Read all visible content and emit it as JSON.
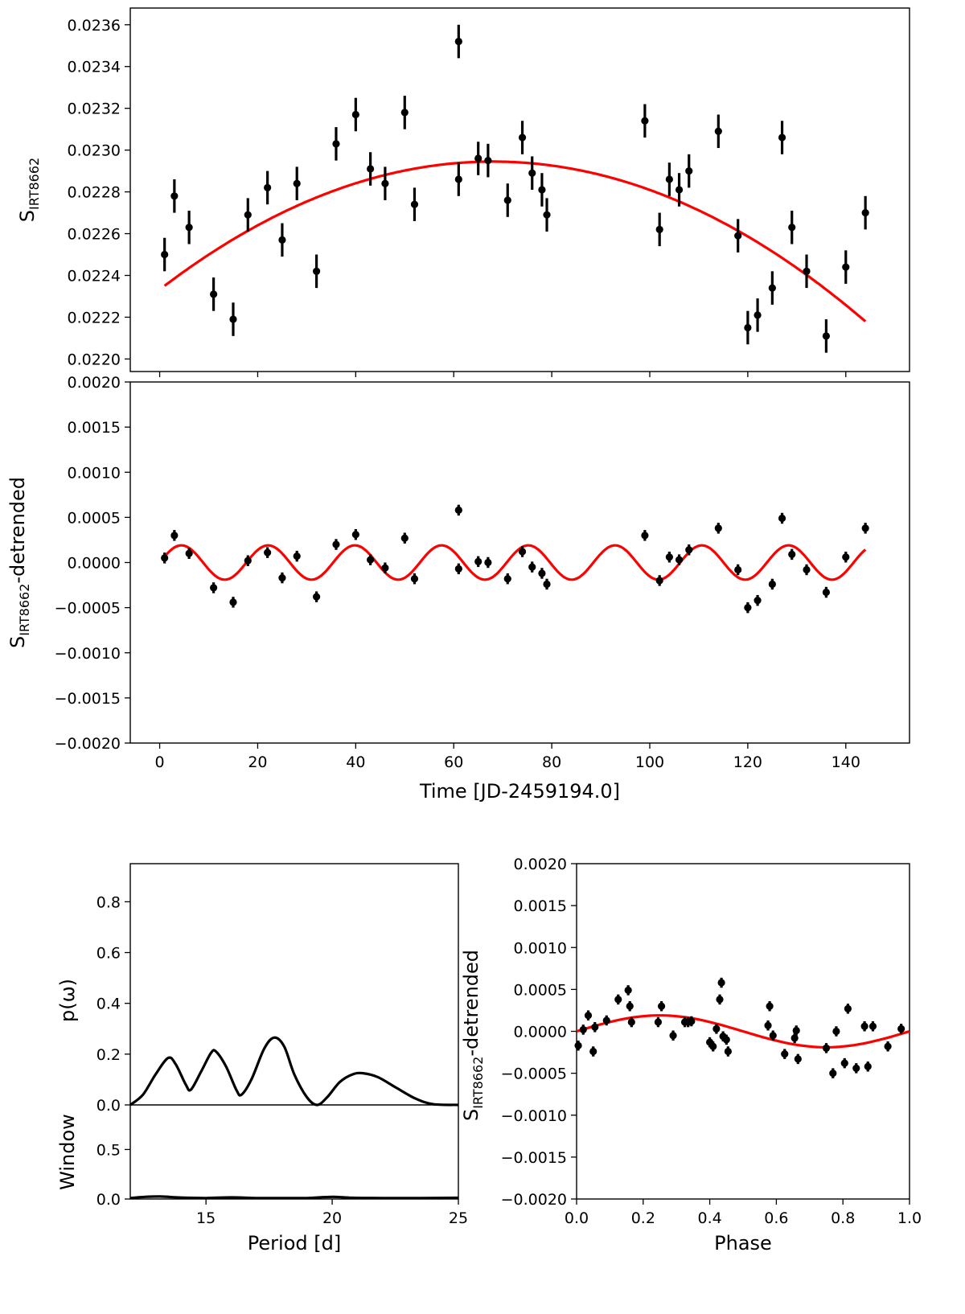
{
  "chart_data": [
    {
      "panel": "top",
      "type": "scatter",
      "ylabel_main": "S",
      "ylabel_sub": "IRT8662",
      "xlim": [
        -6,
        153
      ],
      "ylim": [
        0.02194,
        0.02368
      ],
      "yticks": [
        "0.0220",
        "0.0222",
        "0.0224",
        "0.0226",
        "0.0228",
        "0.0230",
        "0.0232",
        "0.0234",
        "0.0236"
      ],
      "ytick_values": [
        0.022,
        0.0222,
        0.0224,
        0.0226,
        0.0228,
        0.023,
        0.0232,
        0.0234,
        0.0236
      ],
      "points": [
        [
          1,
          0.0225
        ],
        [
          3,
          0.02278
        ],
        [
          6,
          0.02263
        ],
        [
          11,
          0.02231
        ],
        [
          15,
          0.02219
        ],
        [
          18,
          0.02269
        ],
        [
          22,
          0.02282
        ],
        [
          25,
          0.02257
        ],
        [
          28,
          0.02284
        ],
        [
          32,
          0.02242
        ],
        [
          36,
          0.02303
        ],
        [
          40,
          0.02317
        ],
        [
          43,
          0.02291
        ],
        [
          46,
          0.02284
        ],
        [
          50,
          0.02318
        ],
        [
          52,
          0.02274
        ],
        [
          61,
          0.02352
        ],
        [
          61,
          0.02286
        ],
        [
          65,
          0.02296
        ],
        [
          67,
          0.02295
        ],
        [
          71,
          0.02276
        ],
        [
          74,
          0.02306
        ],
        [
          76,
          0.02289
        ],
        [
          78,
          0.02281
        ],
        [
          79,
          0.02269
        ],
        [
          99,
          0.02314
        ],
        [
          102,
          0.02262
        ],
        [
          104,
          0.02286
        ],
        [
          106,
          0.02281
        ],
        [
          108,
          0.0229
        ],
        [
          114,
          0.02309
        ],
        [
          118,
          0.02259
        ],
        [
          120,
          0.02215
        ],
        [
          122,
          0.02221
        ],
        [
          125,
          0.02234
        ],
        [
          127,
          0.02306
        ],
        [
          129,
          0.02263
        ],
        [
          132,
          0.02242
        ],
        [
          136,
          0.02211
        ],
        [
          140,
          0.02244
        ],
        [
          144,
          0.0227
        ]
      ],
      "yerr": 8e-05,
      "fit": {
        "color": "#ff0000",
        "model": "quadratic",
        "x0": 68,
        "peak": 0.022945,
        "curvature": 1.325e-07,
        "x_range": [
          1,
          144
        ]
      }
    },
    {
      "panel": "middle",
      "type": "scatter",
      "ylabel_main": "S",
      "ylabel_sub": "IRT8662",
      "ylabel_suffix": "-detrended",
      "xlabel": "Time [JD-2459194.0]",
      "xlim": [
        -6,
        153
      ],
      "ylim": [
        -0.002,
        0.002
      ],
      "xticks": [
        "0",
        "20",
        "40",
        "60",
        "80",
        "100",
        "120",
        "140"
      ],
      "xtick_values": [
        0,
        20,
        40,
        60,
        80,
        100,
        120,
        140
      ],
      "yticks": [
        "−0.0020",
        "−0.0015",
        "−0.0010",
        "−0.0005",
        "0.0000",
        "0.0005",
        "0.0010",
        "0.0015",
        "0.0020"
      ],
      "ytick_values": [
        -0.002,
        -0.0015,
        -0.001,
        -0.0005,
        0,
        0.0005,
        0.001,
        0.0015,
        0.002
      ],
      "points": [
        [
          1,
          5e-05
        ],
        [
          3,
          0.0003
        ],
        [
          6,
          0.0001
        ],
        [
          11,
          -0.00028
        ],
        [
          15,
          -0.00044
        ],
        [
          18,
          2e-05
        ],
        [
          22,
          0.00011
        ],
        [
          25,
          -0.00017
        ],
        [
          28,
          7e-05
        ],
        [
          32,
          -0.00038
        ],
        [
          36,
          0.0002
        ],
        [
          40,
          0.00031
        ],
        [
          43,
          3e-05
        ],
        [
          46,
          -6e-05
        ],
        [
          50,
          0.00027
        ],
        [
          52,
          -0.00018
        ],
        [
          61,
          0.00058
        ],
        [
          61,
          -7e-05
        ],
        [
          65,
          1e-05
        ],
        [
          67,
          0.0
        ],
        [
          71,
          -0.00018
        ],
        [
          74,
          0.00012
        ],
        [
          76,
          -5e-05
        ],
        [
          78,
          -0.00012
        ],
        [
          79,
          -0.00024
        ],
        [
          99,
          0.0003
        ],
        [
          102,
          -0.0002
        ],
        [
          104,
          6e-05
        ],
        [
          106,
          3e-05
        ],
        [
          108,
          0.00014
        ],
        [
          114,
          0.00038
        ],
        [
          118,
          -8e-05
        ],
        [
          120,
          -0.0005
        ],
        [
          122,
          -0.00042
        ],
        [
          125,
          -0.00024
        ],
        [
          127,
          0.00049
        ],
        [
          129,
          9e-05
        ],
        [
          132,
          -8e-05
        ],
        [
          136,
          -0.00033
        ],
        [
          140,
          6e-05
        ],
        [
          144,
          0.00038
        ]
      ],
      "yerr": 6e-05,
      "fit": {
        "color": "#ff0000",
        "model": "sine",
        "amplitude": 0.00019,
        "period": 17.7,
        "phase_x": 0,
        "x_range": [
          1,
          144
        ]
      }
    },
    {
      "panel": "periodogram",
      "type": "line",
      "ylabel_top": "p(ω)",
      "ylabel_bottom": "Window",
      "xlabel": "Period [d]",
      "xlim": [
        12,
        25
      ],
      "ylim_top": [
        0,
        0.95
      ],
      "ylim_bottom": [
        0,
        0.95
      ],
      "xticks": [
        "15",
        "20",
        "25"
      ],
      "xtick_values": [
        15,
        20,
        25
      ],
      "yticks_top": [
        "0.0",
        "0.2",
        "0.4",
        "0.6",
        "0.8"
      ],
      "ytick_values_top": [
        0,
        0.2,
        0.4,
        0.6,
        0.8
      ],
      "yticks_bottom": [
        "0.0",
        "0.5"
      ],
      "ytick_values_bottom": [
        0,
        0.5
      ],
      "curve": [
        [
          12.0,
          0.0
        ],
        [
          12.5,
          0.04
        ],
        [
          13.0,
          0.12
        ],
        [
          13.5,
          0.185
        ],
        [
          13.8,
          0.16
        ],
        [
          14.2,
          0.08
        ],
        [
          14.4,
          0.06
        ],
        [
          14.8,
          0.13
        ],
        [
          15.2,
          0.205
        ],
        [
          15.4,
          0.21
        ],
        [
          15.8,
          0.15
        ],
        [
          16.2,
          0.06
        ],
        [
          16.4,
          0.04
        ],
        [
          16.8,
          0.1
        ],
        [
          17.3,
          0.22
        ],
        [
          17.7,
          0.265
        ],
        [
          18.1,
          0.23
        ],
        [
          18.5,
          0.12
        ],
        [
          19.0,
          0.03
        ],
        [
          19.4,
          0.0
        ],
        [
          19.8,
          0.03
        ],
        [
          20.3,
          0.09
        ],
        [
          20.8,
          0.12
        ],
        [
          21.2,
          0.125
        ],
        [
          21.8,
          0.11
        ],
        [
          22.5,
          0.07
        ],
        [
          23.3,
          0.025
        ],
        [
          24.0,
          0.003
        ],
        [
          25.0,
          0.0
        ]
      ],
      "window": [
        [
          12.0,
          0.01
        ],
        [
          12.6,
          0.022
        ],
        [
          13.2,
          0.025
        ],
        [
          14.0,
          0.015
        ],
        [
          15.0,
          0.01
        ],
        [
          16.0,
          0.016
        ],
        [
          17.0,
          0.01
        ],
        [
          18.0,
          0.01
        ],
        [
          19.0,
          0.01
        ],
        [
          20.0,
          0.022
        ],
        [
          20.8,
          0.012
        ],
        [
          22.0,
          0.01
        ],
        [
          23.5,
          0.01
        ],
        [
          25.0,
          0.012
        ]
      ]
    },
    {
      "panel": "phase",
      "type": "scatter",
      "ylabel_main": "S",
      "ylabel_sub": "IRT8662",
      "ylabel_suffix": "-detrended",
      "xlabel": "Phase",
      "xlim": [
        0,
        1
      ],
      "ylim": [
        -0.002,
        0.002
      ],
      "xticks": [
        "0.0",
        "0.2",
        "0.4",
        "0.6",
        "0.8",
        "1.0"
      ],
      "xtick_values": [
        0,
        0.2,
        0.4,
        0.6,
        0.8,
        1.0
      ],
      "yticks": [
        "−0.0020",
        "−0.0015",
        "−0.0010",
        "−0.0005",
        "0.0000",
        "0.0005",
        "0.0010",
        "0.0015",
        "0.0020"
      ],
      "ytick_values": [
        -0.002,
        -0.0015,
        -0.001,
        -0.0005,
        0,
        0.0005,
        0.001,
        0.0015,
        0.002
      ],
      "points": [
        [
          0.005,
          -0.00017
        ],
        [
          0.02,
          2e-05
        ],
        [
          0.035,
          0.00019
        ],
        [
          0.05,
          -0.00024
        ],
        [
          0.055,
          5e-05
        ],
        [
          0.09,
          0.00013
        ],
        [
          0.125,
          0.00038
        ],
        [
          0.155,
          0.00049
        ],
        [
          0.16,
          0.0003
        ],
        [
          0.165,
          0.00011
        ],
        [
          0.245,
          0.00011
        ],
        [
          0.255,
          0.0003
        ],
        [
          0.29,
          -5e-05
        ],
        [
          0.325,
          0.00011
        ],
        [
          0.335,
          0.00011
        ],
        [
          0.345,
          0.00012
        ],
        [
          0.4,
          -0.00013
        ],
        [
          0.41,
          -0.00018
        ],
        [
          0.42,
          3e-05
        ],
        [
          0.43,
          0.00038
        ],
        [
          0.435,
          0.00058
        ],
        [
          0.44,
          -6e-05
        ],
        [
          0.45,
          -0.0001
        ],
        [
          0.455,
          -0.00024
        ],
        [
          0.575,
          7e-05
        ],
        [
          0.58,
          0.0003
        ],
        [
          0.59,
          -5e-05
        ],
        [
          0.625,
          -0.00027
        ],
        [
          0.655,
          -8e-05
        ],
        [
          0.66,
          1e-05
        ],
        [
          0.665,
          -0.00033
        ],
        [
          0.75,
          -0.0002
        ],
        [
          0.77,
          -0.0005
        ],
        [
          0.78,
          0.0
        ],
        [
          0.805,
          -0.00038
        ],
        [
          0.815,
          0.00027
        ],
        [
          0.84,
          -0.00044
        ],
        [
          0.865,
          6e-05
        ],
        [
          0.875,
          -0.00042
        ],
        [
          0.89,
          6e-05
        ],
        [
          0.935,
          -0.00018
        ],
        [
          0.975,
          3e-05
        ]
      ],
      "yerr": 6e-05,
      "fit": {
        "color": "#ff0000",
        "model": "sine",
        "amplitude": 0.00019
      }
    }
  ]
}
